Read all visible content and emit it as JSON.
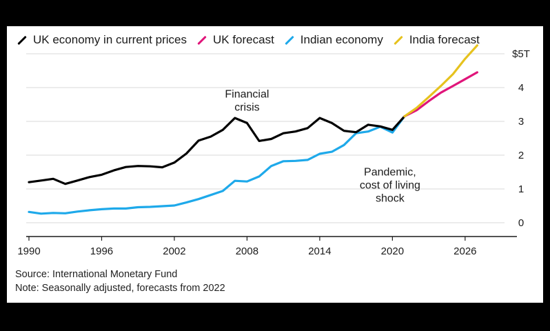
{
  "chart_data": {
    "type": "line",
    "title": "",
    "legend": [
      {
        "name": "UK economy in current prices",
        "color": "#000000"
      },
      {
        "name": "UK forecast",
        "color": "#e0157a"
      },
      {
        "name": "Indian economy",
        "color": "#1ea9ea"
      },
      {
        "name": "India forecast",
        "color": "#e6c21e"
      }
    ],
    "legend_position": "top-left",
    "xlim": [
      1990,
      2028
    ],
    "ylim": [
      0,
      5
    ],
    "x_ticks": [
      1990,
      1996,
      2002,
      2008,
      2014,
      2020,
      2026
    ],
    "y_ticks": [
      {
        "value": 0,
        "label": "0"
      },
      {
        "value": 1,
        "label": "1"
      },
      {
        "value": 2,
        "label": "2"
      },
      {
        "value": 3,
        "label": "3"
      },
      {
        "value": 4,
        "label": "4"
      },
      {
        "value": 5,
        "label": "$5T"
      }
    ],
    "series": [
      {
        "name": "UK economy in current prices",
        "color": "#000000",
        "x": [
          1990,
          1991,
          1992,
          1993,
          1994,
          1995,
          1996,
          1997,
          1998,
          1999,
          2000,
          2001,
          2002,
          2003,
          2004,
          2005,
          2006,
          2007,
          2008,
          2009,
          2010,
          2011,
          2012,
          2013,
          2014,
          2015,
          2016,
          2017,
          2018,
          2019,
          2020,
          2021
        ],
        "values": [
          1.2,
          1.25,
          1.3,
          1.15,
          1.25,
          1.35,
          1.42,
          1.55,
          1.65,
          1.68,
          1.67,
          1.64,
          1.78,
          2.05,
          2.43,
          2.55,
          2.75,
          3.1,
          2.95,
          2.42,
          2.48,
          2.65,
          2.7,
          2.8,
          3.1,
          2.95,
          2.72,
          2.68,
          2.9,
          2.85,
          2.75,
          3.15
        ]
      },
      {
        "name": "UK forecast",
        "color": "#e0157a",
        "x": [
          2021,
          2022,
          2023,
          2024,
          2025,
          2026,
          2027
        ],
        "values": [
          3.15,
          3.33,
          3.6,
          3.85,
          4.05,
          4.25,
          4.45
        ]
      },
      {
        "name": "Indian economy",
        "color": "#1ea9ea",
        "x": [
          1990,
          1991,
          1992,
          1993,
          1994,
          1995,
          1996,
          1997,
          1998,
          1999,
          2000,
          2001,
          2002,
          2003,
          2004,
          2005,
          2006,
          2007,
          2008,
          2009,
          2010,
          2011,
          2012,
          2013,
          2014,
          2015,
          2016,
          2017,
          2018,
          2019,
          2020,
          2021
        ],
        "values": [
          0.32,
          0.27,
          0.29,
          0.28,
          0.33,
          0.37,
          0.4,
          0.42,
          0.42,
          0.46,
          0.47,
          0.49,
          0.51,
          0.6,
          0.7,
          0.82,
          0.94,
          1.24,
          1.22,
          1.37,
          1.68,
          1.82,
          1.83,
          1.86,
          2.04,
          2.1,
          2.3,
          2.65,
          2.7,
          2.84,
          2.67,
          3.15
        ]
      },
      {
        "name": "India forecast",
        "color": "#e6c21e",
        "x": [
          2021,
          2022,
          2023,
          2024,
          2025,
          2026,
          2027
        ],
        "values": [
          3.15,
          3.4,
          3.72,
          4.05,
          4.4,
          4.85,
          5.25
        ]
      }
    ],
    "annotations": [
      {
        "lines": [
          "Financial",
          "crisis"
        ],
        "x": 2008,
        "y": 3.7
      },
      {
        "lines": [
          "Pandemic,",
          "cost of living",
          "shock"
        ],
        "x": 2019.8,
        "y": 1.4
      }
    ]
  },
  "footer": {
    "source": "Source: International Monetary Fund",
    "note": "Note: Seasonally adjusted, forecasts from 2022"
  }
}
